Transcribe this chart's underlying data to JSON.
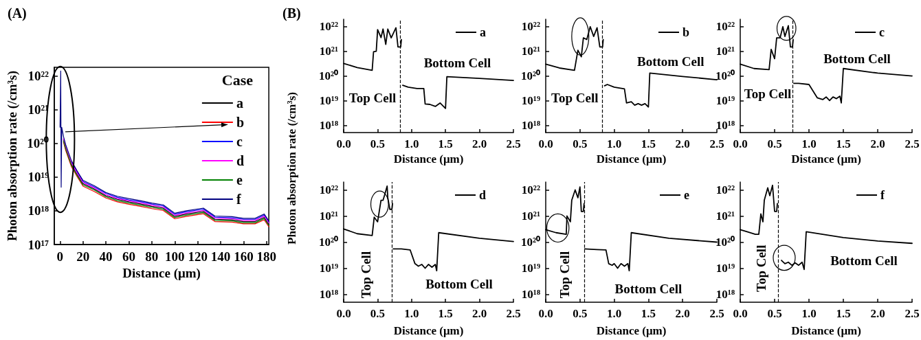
{
  "chart_data": [
    {
      "type": "line",
      "title": "(A)",
      "xlabel": "Distance (μm)",
      "ylabel": "Photon absorption rate (/cm³s)",
      "legend_title": "Case",
      "legend": "top right",
      "log": "y",
      "x": [
        0,
        0.6,
        1,
        1.5,
        3,
        5,
        10,
        15,
        20,
        30,
        40,
        50,
        60,
        70,
        80,
        90,
        100,
        110,
        125,
        135,
        150,
        160,
        170,
        178,
        182
      ],
      "series": [
        {
          "name": "a",
          "color": "#000000",
          "values": [
            null,
            null,
            null,
            null,
            1.28e+20,
            7.2e+19,
            2.4e+19,
            1.2e+19,
            6.4e+18,
            4.4e+18,
            2.8e+18,
            2.2e+18,
            1.84e+18,
            1.6e+18,
            1.36e+18,
            1.2e+18,
            6.8e+17,
            8e+17,
            9.6e+17,
            5.6e+17,
            5.4e+17,
            4.8e+17,
            4.8e+17,
            6.4e+17,
            4e+17
          ]
        },
        {
          "name": "b",
          "color": "#ff0000",
          "values": [
            null,
            null,
            null,
            null,
            1.09e+20,
            6.1e+19,
            2e+19,
            1.02e+19,
            5.4e+18,
            3.7e+18,
            2.4e+18,
            1.84e+18,
            1.56e+18,
            1.36e+18,
            1.16e+18,
            1.02e+18,
            5.8e+17,
            6.8e+17,
            8.2e+17,
            4.8e+17,
            4.6e+17,
            4.1e+17,
            4.1e+17,
            5.4e+17,
            3.4e+17
          ]
        },
        {
          "name": "c",
          "color": "#0000ff",
          "values": [
            null,
            null,
            null,
            null,
            null,
            null,
            2.8e+19,
            1.4e+19,
            7.4e+18,
            5.1e+18,
            3.3e+18,
            2.5e+18,
            2.1e+18,
            1.86e+18,
            1.58e+18,
            1.4e+18,
            7.9e+17,
            9.3e+17,
            1.12e+18,
            6.5e+17,
            6.2e+17,
            5.6e+17,
            5.6e+17,
            7.4e+17,
            4.65e+17
          ]
        },
        {
          "name": "d",
          "color": "#ff00ff",
          "values": [
            null,
            null,
            null,
            null,
            1.38e+20,
            7.7e+19,
            2.6e+19,
            1.29e+19,
            6.9e+18,
            4.7e+18,
            3e+18,
            2.3e+18,
            1.98e+18,
            1.72e+18,
            1.46e+18,
            1.29e+18,
            7.3e+17,
            8.6e+17,
            1.03e+18,
            6e+17,
            5.8e+17,
            5.2e+17,
            5.2e+17,
            6.9e+17,
            4.3e+17
          ]
        },
        {
          "name": "e",
          "color": "#008000",
          "values": [
            null,
            null,
            null,
            null,
            1.18e+20,
            6.7e+19,
            2.2e+19,
            1.11e+19,
            5.9e+18,
            4.1e+18,
            2.6e+18,
            2e+18,
            1.7e+18,
            1.48e+18,
            1.26e+18,
            1.11e+18,
            6.3e+17,
            7.4e+17,
            8.9e+17,
            5.2e+17,
            5e+17,
            4.4e+17,
            4.4e+17,
            5.9e+17,
            3.7e+17
          ]
        },
        {
          "name": "f",
          "color": "#000080",
          "values": [
            3e+20,
            1.4e+22,
            5e+18,
            3e+20,
            1.6e+20,
            9e+19,
            3e+19,
            1.5e+19,
            8e+18,
            5.5e+18,
            3.5e+18,
            2.7e+18,
            2.3e+18,
            2e+18,
            1.7e+18,
            1.5e+18,
            8.5e+17,
            1e+18,
            1.2e+18,
            7e+17,
            6.7e+17,
            6e+17,
            6e+17,
            8e+17,
            5e+17
          ]
        }
      ],
      "xlim": [
        -5,
        182
      ],
      "xticks": [
        0,
        20,
        40,
        60,
        80,
        100,
        120,
        140,
        160,
        180
      ],
      "ylim": [
        1e+17,
        1.8e+22
      ],
      "yticks": [
        {
          "value": 1e+17,
          "label": "10¹⁷"
        },
        {
          "value": 1e+18,
          "label": "10¹⁸"
        },
        {
          "value": 1e+19,
          "label": "10¹⁹"
        },
        {
          "value": 1e+20,
          "label": "10²⁰"
        },
        {
          "value": 1e+21,
          "label": "10²¹"
        },
        {
          "value": 1e+22,
          "label": "10²²"
        }
      ]
    },
    {
      "type": "line",
      "title": "(B)",
      "xlabel": "Distance (μm)",
      "ylabel": "Photon absorption rate (/cm³s)",
      "legend": "top right",
      "log": "y",
      "annotations": [
        "Top Cell",
        "Bottom Cell"
      ],
      "series": [
        {
          "name": "a",
          "color": "#000000",
          "x": [
            0,
            0.2,
            0.42,
            0.44,
            0.48,
            0.5,
            0.55,
            0.58,
            0.62,
            0.65,
            0.7,
            0.77,
            0.8,
            0.84,
            0.85,
            0.86,
            0.87,
            0.95,
            1.08,
            1.18,
            1.2,
            1.27,
            1.35,
            1.42,
            1.5,
            1.52,
            2.0,
            2.5
          ],
          "values": [
            3.2e+20,
            2.2e+20,
            1.7e+20,
            9.5e+20,
            1e+21,
            7.6e+21,
            3.6e+21,
            8e+21,
            1.9e+21,
            8e+21,
            3.5e+21,
            9e+21,
            1.5e+21,
            1.5e+21,
            3e+21,
            null,
            4.2e+19,
            3.5e+19,
            3.1e+19,
            3.1e+19,
            7.3e+18,
            7e+18,
            5.8e+18,
            8e+18,
            4.8e+18,
            9.3e+19,
            8e+19,
            6.6e+19
          ]
        }
      ],
      "ref_lines": [
        {
          "axis": "x",
          "value": 0.83,
          "line_style": "dashed"
        }
      ],
      "xlim": [
        0,
        2.5
      ],
      "xticks": [
        {
          "value": 0,
          "label": "0.0"
        },
        0.5,
        {
          "value": 1,
          "label": "1.0"
        },
        1.5,
        {
          "value": 2,
          "label": "2.0"
        },
        2.5
      ],
      "ylim": [
        5e+17,
        2e+22
      ],
      "yticks": [
        {
          "value": 1e+18,
          "label": "10¹⁸"
        },
        {
          "value": 1e+19,
          "label": "10¹⁹"
        },
        {
          "value": 1e+20,
          "label": "10²⁰"
        },
        {
          "value": 1e+21,
          "label": "10²¹"
        },
        {
          "value": 1e+22,
          "label": "10²²"
        }
      ]
    },
    {
      "type": "line",
      "xlabel": "Distance (μm)",
      "legend": "top right",
      "log": "y",
      "annotations": [
        "Top Cell",
        "Bottom Cell"
      ],
      "series": [
        {
          "name": "b",
          "color": "#000000",
          "x": [
            0,
            0.2,
            0.42,
            0.47,
            0.52,
            0.55,
            0.6,
            0.65,
            0.7,
            0.75,
            0.79,
            0.83,
            0.84,
            0.845,
            0.86,
            0.9,
            1.0,
            1.15,
            1.18,
            1.25,
            1.3,
            1.35,
            1.4,
            1.45,
            1.5,
            1.52,
            2.0,
            2.5
          ],
          "values": [
            3e+20,
            2.1e+20,
            1.7e+20,
            1.1e+21,
            6e+20,
            3.5e+21,
            3e+21,
            1e+22,
            4e+21,
            9e+21,
            1.5e+21,
            1.5e+21,
            3e+21,
            null,
            4e+19,
            4.5e+19,
            3.5e+19,
            3e+19,
            8e+18,
            9e+18,
            6.5e+18,
            7.5e+18,
            6.5e+18,
            7.5e+18,
            5.5e+18,
            1.3e+20,
            9.5e+19,
            7e+19
          ]
        }
      ],
      "ref_lines": [
        {
          "axis": "x",
          "value": 0.83,
          "line_style": "dashed"
        }
      ],
      "xlim": [
        0,
        2.5
      ],
      "xticks": [
        {
          "value": 0,
          "label": "0.0"
        },
        0.5,
        {
          "value": 1,
          "label": "1.0"
        },
        1.5,
        {
          "value": 2,
          "label": "2.0"
        },
        2.5
      ],
      "ylim": [
        5e+17,
        2e+22
      ],
      "yticks": [
        {
          "value": 1e+18,
          "label": "10¹⁸"
        },
        {
          "value": 1e+19,
          "label": "10¹⁹"
        },
        {
          "value": 1e+20,
          "label": "10²⁰"
        },
        {
          "value": 1e+21,
          "label": "10²¹"
        },
        {
          "value": 1e+22,
          "label": "10²²"
        }
      ]
    },
    {
      "type": "line",
      "xlabel": "Distance (μm)",
      "legend": "top right",
      "log": "y",
      "annotations": [
        "Top Cell",
        "Bottom Cell"
      ],
      "series": [
        {
          "name": "c",
          "color": "#000000",
          "x": [
            0,
            0.2,
            0.42,
            0.45,
            0.5,
            0.53,
            0.58,
            0.62,
            0.65,
            0.7,
            0.73,
            0.76,
            0.77,
            0.775,
            0.78,
            0.85,
            1.0,
            1.12,
            1.2,
            1.25,
            1.3,
            1.35,
            1.4,
            1.45,
            1.47,
            1.5,
            2.0,
            2.5
          ],
          "values": [
            3e+20,
            2e+20,
            1.8e+20,
            1.2e+21,
            5e+20,
            3.5e+21,
            3.5e+21,
            1e+22,
            4e+21,
            1.1e+22,
            1.5e+21,
            1.5e+21,
            3e+21,
            null,
            5e+19,
            5e+19,
            4.5e+19,
            1.3e+19,
            1.1e+19,
            1.4e+19,
            1e+19,
            1.4e+19,
            1.2e+19,
            1.5e+19,
            8e+18,
            2e+20,
            1.3e+20,
            1e+20
          ]
        }
      ],
      "ref_lines": [
        {
          "axis": "x",
          "value": 0.76,
          "line_style": "dashed"
        }
      ],
      "xlim": [
        0,
        2.5
      ],
      "xticks": [
        {
          "value": 0,
          "label": "0.0"
        },
        0.5,
        {
          "value": 1,
          "label": "1.0"
        },
        1.5,
        {
          "value": 2,
          "label": "2.0"
        },
        2.5
      ],
      "ylim": [
        5e+17,
        2e+22
      ],
      "yticks": [
        {
          "value": 1e+18,
          "label": "10¹⁸"
        },
        {
          "value": 1e+19,
          "label": "10¹⁹"
        },
        {
          "value": 1e+20,
          "label": "10²⁰"
        },
        {
          "value": 1e+21,
          "label": "10²¹"
        },
        {
          "value": 1e+22,
          "label": "10²²"
        }
      ]
    },
    {
      "type": "line",
      "xlabel": "Distance (μm)",
      "legend": "top right",
      "log": "y",
      "annotations": [
        "Top Cell",
        "Bottom Cell"
      ],
      "series": [
        {
          "name": "d",
          "color": "#000000",
          "x": [
            0,
            0.2,
            0.42,
            0.45,
            0.5,
            0.55,
            0.58,
            0.6,
            0.64,
            0.65,
            0.68,
            0.71,
            0.72,
            0.725,
            0.73,
            0.85,
            0.98,
            1.05,
            1.1,
            1.15,
            1.2,
            1.25,
            1.3,
            1.35,
            1.37,
            1.4,
            2.0,
            2.5
          ],
          "values": [
            3.2e+20,
            2.1e+20,
            1.8e+20,
            9e+20,
            6e+20,
            4e+21,
            4e+21,
            6e+21,
            1.4e+22,
            5e+21,
            1.8e+21,
            1.8e+21,
            3e+21,
            null,
            5.5e+19,
            5.5e+19,
            5e+19,
            1.5e+19,
            1.2e+19,
            1.4e+19,
            1e+19,
            1.4e+19,
            1.1e+19,
            1.4e+19,
            8e+18,
            2.3e+20,
            1.4e+20,
            1.05e+20
          ]
        }
      ],
      "ref_lines": [
        {
          "axis": "x",
          "value": 0.71,
          "line_style": "dashed"
        }
      ],
      "xlim": [
        0,
        2.5
      ],
      "xticks": [
        {
          "value": 0,
          "label": "0.0"
        },
        0.5,
        {
          "value": 1,
          "label": "1.0"
        },
        1.5,
        {
          "value": 2,
          "label": "2.0"
        },
        2.5
      ],
      "ylim": [
        5e+17,
        2e+22
      ],
      "yticks": [
        {
          "value": 1e+18,
          "label": "10¹⁸"
        },
        {
          "value": 1e+19,
          "label": "10¹⁹"
        },
        {
          "value": 1e+20,
          "label": "10²⁰"
        },
        {
          "value": 1e+21,
          "label": "10²¹"
        },
        {
          "value": 1e+22,
          "label": "10²²"
        }
      ]
    },
    {
      "type": "line",
      "xlabel": "Distance (μm)",
      "legend": "top right",
      "log": "y",
      "annotations": [
        "Top Cell",
        "Bottom Cell"
      ],
      "series": [
        {
          "name": "e",
          "color": "#000000",
          "x": [
            0,
            0.15,
            0.3,
            0.31,
            0.36,
            0.38,
            0.43,
            0.47,
            0.5,
            0.52,
            0.55,
            0.56,
            0.565,
            0.57,
            0.75,
            0.88,
            0.92,
            0.97,
            1.0,
            1.05,
            1.1,
            1.15,
            1.2,
            1.22,
            1.25,
            1.8,
            2.5
          ],
          "values": [
            3e+20,
            2.3e+20,
            2e+20,
            1e+21,
            6e+20,
            4e+21,
            1e+22,
            5e+21,
            1.3e+22,
            1.5e+21,
            1.5e+21,
            3e+21,
            null,
            5.5e+19,
            5.2e+19,
            5e+19,
            1.5e+19,
            1.3e+19,
            1.5e+19,
            1e+19,
            1.5e+19,
            1.2e+19,
            1.5e+19,
            8e+18,
            2.3e+20,
            1.4e+20,
            1e+20
          ]
        }
      ],
      "ref_lines": [
        {
          "axis": "x",
          "value": 0.56,
          "line_style": "dashed"
        }
      ],
      "xlim": [
        0,
        2.5
      ],
      "xticks": [
        {
          "value": 0,
          "label": "0.0"
        },
        0.5,
        {
          "value": 1,
          "label": "1.0"
        },
        1.5,
        {
          "value": 2,
          "label": "2.0"
        },
        2.5
      ],
      "ylim": [
        5e+17,
        2e+22
      ],
      "yticks": [
        {
          "value": 1e+18,
          "label": "10¹⁸"
        },
        {
          "value": 1e+19,
          "label": "10¹⁹"
        },
        {
          "value": 1e+20,
          "label": "10²⁰"
        },
        {
          "value": 1e+21,
          "label": "10²¹"
        },
        {
          "value": 1e+22,
          "label": "10²²"
        }
      ]
    },
    {
      "type": "line",
      "xlabel": "Distance (μm)",
      "legend": "top right",
      "log": "y",
      "annotations": [
        "Top Cell",
        "Bottom Cell"
      ],
      "series": [
        {
          "name": "f",
          "color": "#000000",
          "x": [
            0,
            0.1,
            0.22,
            0.27,
            0.3,
            0.33,
            0.35,
            0.4,
            0.43,
            0.47,
            0.5,
            0.53,
            0.54,
            0.55,
            0.6,
            0.65,
            0.7,
            0.75,
            0.8,
            0.85,
            0.9,
            0.93,
            0.96,
            1.5,
            2.0,
            2.5
          ],
          "values": [
            3e+20,
            2.5e+20,
            2e+20,
            2e+20,
            1.2e+21,
            6e+20,
            4e+21,
            1.2e+22,
            6e+21,
            1.5e+22,
            1.5e+21,
            1.5e+21,
            3e+21,
            null,
            2e+19,
            1.5e+19,
            1.7e+19,
            1.3e+19,
            1.6e+19,
            1.3e+19,
            1.7e+19,
            9e+18,
            2.5e+20,
            1.5e+20,
            1.1e+20,
            9e+19
          ]
        }
      ],
      "ref_lines": [
        {
          "axis": "x",
          "value": 0.55,
          "line_style": "dashed"
        }
      ],
      "xlim": [
        0,
        2.5
      ],
      "xticks": [
        {
          "value": 0,
          "label": "0.0"
        },
        0.5,
        {
          "value": 1,
          "label": "1.0"
        },
        1.5,
        {
          "value": 2,
          "label": "2.0"
        },
        2.5
      ],
      "ylim": [
        5e+17,
        2e+22
      ],
      "yticks": [
        {
          "value": 1e+18,
          "label": "10¹⁸"
        },
        {
          "value": 1e+19,
          "label": "10¹⁹"
        },
        {
          "value": 1e+20,
          "label": "10²⁰"
        },
        {
          "value": 1e+21,
          "label": "10²¹"
        },
        {
          "value": 1e+22,
          "label": "10²²"
        }
      ]
    }
  ]
}
